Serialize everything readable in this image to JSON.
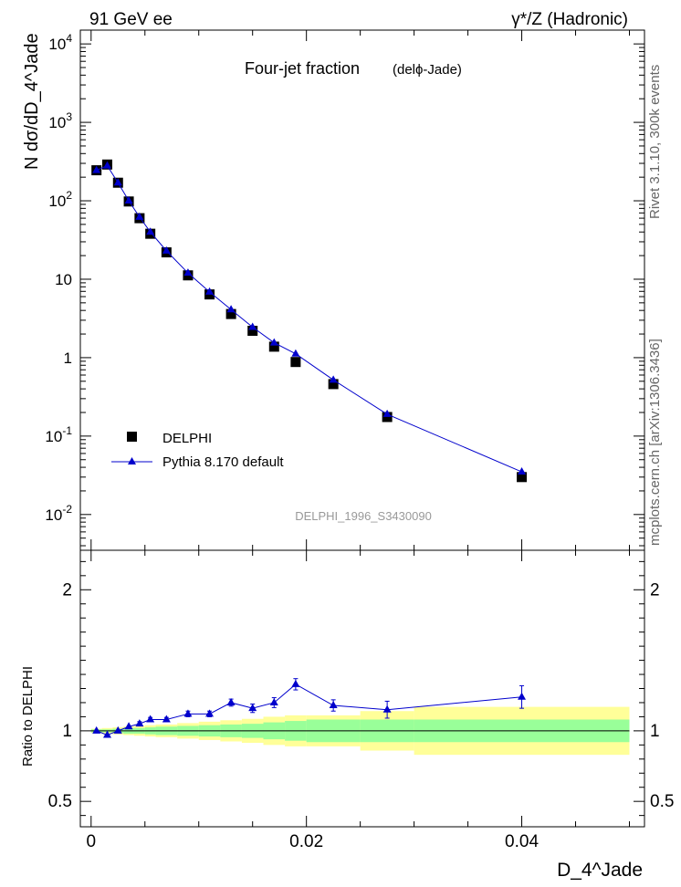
{
  "header": {
    "left": "91 GeV ee",
    "right": "γ*/Z (Hadronic)"
  },
  "side_labels": {
    "rivet": "Rivet 3.1.10,  300k events",
    "mcplots": "mcplots.cern.ch [arXiv:1306.3436]"
  },
  "chart_data": [
    {
      "type": "scatter",
      "panel": "main",
      "title": "Four-jet fraction",
      "subtitle": "(delϕ-Jade)",
      "watermark": "DELPHI_1996_S3430090",
      "ylabel": "N dσ/dD_4^Jade",
      "yscale": "log",
      "xlim": [
        -0.001,
        0.0514
      ],
      "ylim": [
        0.0035,
        15000
      ],
      "ytick_labels": [
        "10^-2",
        "10^-1",
        "1",
        "10",
        "10^2",
        "10^3",
        "10^4"
      ],
      "legend": {
        "position": "bottom-left",
        "entries": [
          "DELPHI",
          "Pythia 8.170 default"
        ]
      },
      "series": [
        {
          "name": "DELPHI",
          "marker": "square",
          "color": "#000000",
          "x": [
            0.0005,
            0.0015,
            0.0025,
            0.0035,
            0.0045,
            0.0055,
            0.007,
            0.009,
            0.011,
            0.013,
            0.015,
            0.017,
            0.019,
            0.0225,
            0.0275,
            0.04
          ],
          "y": [
            245,
            290,
            170,
            98,
            60,
            38,
            22,
            11.2,
            6.4,
            3.6,
            2.2,
            1.38,
            0.88,
            0.46,
            0.175,
            0.03
          ]
        },
        {
          "name": "Pythia 8.170 default",
          "marker": "triangle",
          "color": "#0000cc",
          "x": [
            0.0005,
            0.0015,
            0.0025,
            0.0035,
            0.0045,
            0.0055,
            0.007,
            0.009,
            0.011,
            0.013,
            0.015,
            0.017,
            0.019,
            0.0225,
            0.0275,
            0.04
          ],
          "y": [
            245,
            280,
            170,
            100,
            62,
            40,
            23,
            12.0,
            6.9,
            4.1,
            2.45,
            1.55,
            1.12,
            0.52,
            0.19,
            0.035
          ]
        }
      ]
    },
    {
      "type": "scatter",
      "panel": "ratio",
      "ylabel": "Ratio to DELPHI",
      "xlabel": "D_4^Jade",
      "xlim": [
        -0.001,
        0.0514
      ],
      "ylim": [
        0.32,
        2.28
      ],
      "ytick_labels": [
        "0.5",
        "1",
        "2"
      ],
      "xtick_labels": [
        "0",
        "0.02",
        "0.04"
      ],
      "series": [
        {
          "name": "Pythia 8.170 default / DELPHI",
          "marker": "triangle",
          "color": "#0000cc",
          "x": [
            0.0005,
            0.0015,
            0.0025,
            0.0035,
            0.0045,
            0.0055,
            0.007,
            0.009,
            0.011,
            0.013,
            0.015,
            0.017,
            0.019,
            0.0225,
            0.0275,
            0.04
          ],
          "y": [
            1.0,
            0.97,
            1.0,
            1.03,
            1.05,
            1.08,
            1.08,
            1.12,
            1.12,
            1.2,
            1.16,
            1.2,
            1.33,
            1.18,
            1.15,
            1.24
          ],
          "yerr": [
            0.01,
            0.01,
            0.01,
            0.01,
            0.015,
            0.015,
            0.015,
            0.02,
            0.02,
            0.025,
            0.03,
            0.035,
            0.04,
            0.04,
            0.06,
            0.08
          ]
        }
      ],
      "bands": {
        "x_edges": [
          0,
          0.001,
          0.002,
          0.003,
          0.004,
          0.005,
          0.006,
          0.008,
          0.01,
          0.012,
          0.014,
          0.016,
          0.018,
          0.02,
          0.025,
          0.03,
          0.05
        ],
        "inner_lo": [
          0.99,
          0.99,
          0.985,
          0.98,
          0.98,
          0.975,
          0.97,
          0.965,
          0.96,
          0.955,
          0.95,
          0.94,
          0.93,
          0.92,
          0.92,
          0.92
        ],
        "inner_hi": [
          1.01,
          1.01,
          1.015,
          1.02,
          1.02,
          1.025,
          1.03,
          1.035,
          1.04,
          1.045,
          1.05,
          1.06,
          1.07,
          1.08,
          1.08,
          1.08
        ],
        "outer_lo": [
          0.985,
          0.98,
          0.975,
          0.97,
          0.965,
          0.96,
          0.955,
          0.945,
          0.935,
          0.925,
          0.915,
          0.9,
          0.89,
          0.89,
          0.86,
          0.83
        ],
        "outer_hi": [
          1.015,
          1.02,
          1.025,
          1.03,
          1.035,
          1.04,
          1.045,
          1.055,
          1.065,
          1.075,
          1.085,
          1.1,
          1.11,
          1.11,
          1.14,
          1.17
        ],
        "inner_color": "#99ff99",
        "outer_color": "#ffff99"
      }
    }
  ]
}
